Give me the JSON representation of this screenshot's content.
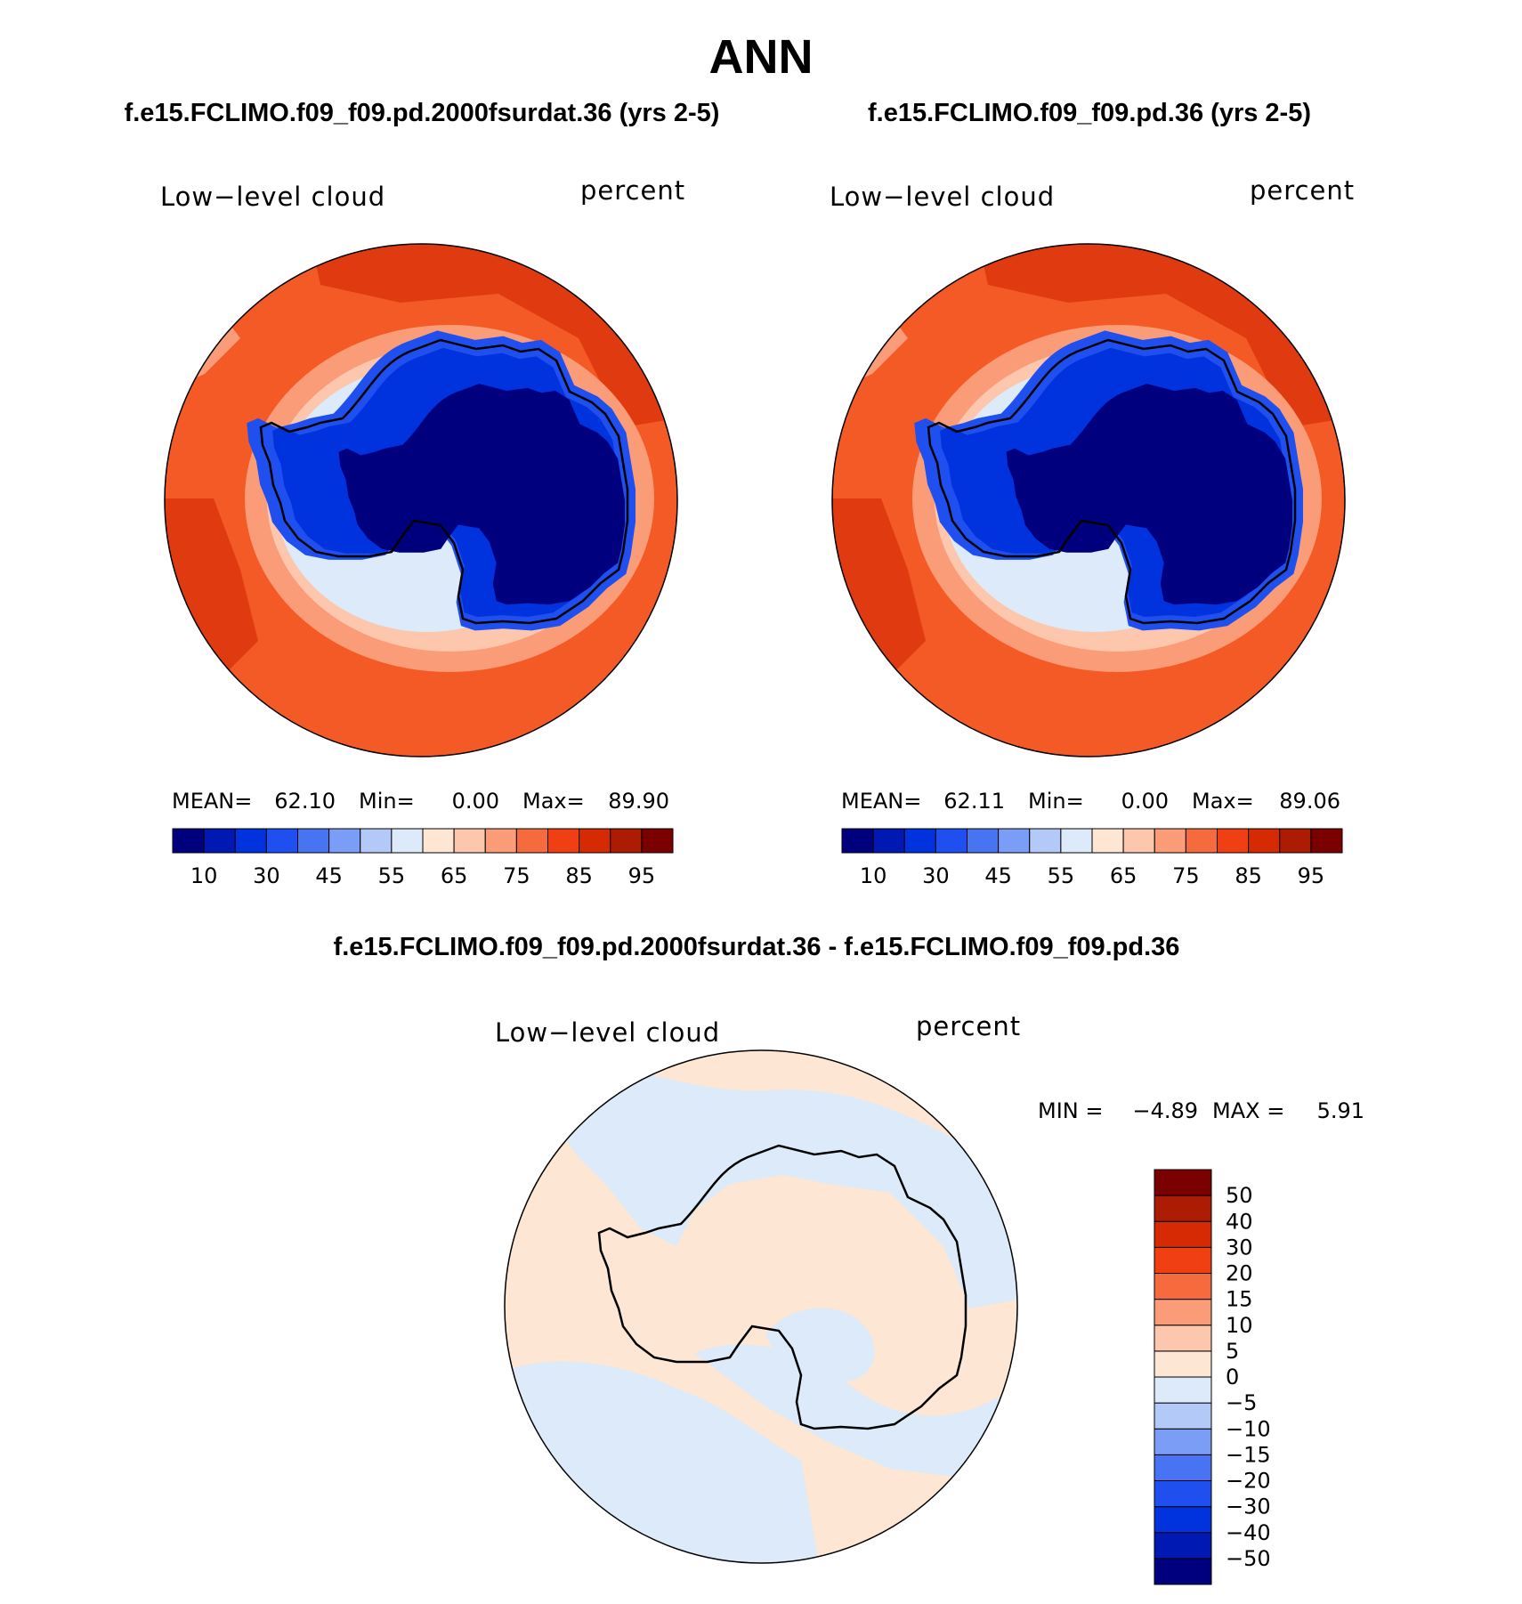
{
  "main_title": "ANN",
  "panels": {
    "left": {
      "case_title": "f.e15.FCLIMO.f09_f09.pd.2000fsurdat.36 (yrs 2-5)",
      "var_label": "Low−level cloud",
      "units": "percent",
      "stats": {
        "mean_label": "MEAN=",
        "mean": "62.10",
        "min_label": "Min=",
        "min": "0.00",
        "max_label": "Max=",
        "max": "89.90"
      }
    },
    "right": {
      "case_title": "f.e15.FCLIMO.f09_f09.pd.36 (yrs 2-5)",
      "var_label": "Low−level cloud",
      "units": "percent",
      "stats": {
        "mean_label": "MEAN=",
        "mean": "62.11",
        "min_label": "Min=",
        "min": "0.00",
        "max_label": "Max=",
        "max": "89.06"
      }
    },
    "diff": {
      "case_title": "f.e15.FCLIMO.f09_f09.pd.2000fsurdat.36 - f.e15.FCLIMO.f09_f09.pd.36",
      "var_label": "Low−level cloud",
      "units": "percent",
      "stats": {
        "min_label": "MIN =",
        "min": "−4.89",
        "max_label": "MAX =",
        "max": "5.91"
      }
    }
  },
  "colorbar_main": {
    "colors": [
      "#00007f",
      "#0019b3",
      "#0033dd",
      "#1f4fef",
      "#4873f2",
      "#7a9ef5",
      "#b3c9f7",
      "#dceaf9",
      "#fde6d3",
      "#fcc7ad",
      "#fa9c78",
      "#f56b3e",
      "#f03f12",
      "#d52a04",
      "#ac1c04",
      "#7b0000"
    ],
    "labels": [
      "10",
      "30",
      "45",
      "55",
      "65",
      "75",
      "85",
      "95"
    ]
  },
  "colorbar_diff": {
    "colors": [
      "#00007f",
      "#0019b3",
      "#0033dd",
      "#1f4fef",
      "#4873f2",
      "#7a9ef5",
      "#b3c9f7",
      "#dceaf9",
      "#fde6d3",
      "#fcc7ad",
      "#fa9c78",
      "#f56b3e",
      "#f03f12",
      "#d52a04",
      "#ac1c04",
      "#7b0000"
    ],
    "labels": [
      "−50",
      "−40",
      "−30",
      "−20",
      "−15",
      "−10",
      "−5",
      "0",
      "5",
      "10",
      "15",
      "20",
      "30",
      "40",
      "50"
    ]
  },
  "map_colors": {
    "ocean_main": "#f35a26",
    "ocean_dark": "#e03a10",
    "ice_edge": "#fbb494",
    "sea_ice_light": "#dcecfa",
    "ice_sheet_blue": "#1f4fef",
    "ice_sheet_deep": "#00007f",
    "diff_positive": "#fde6d3",
    "diff_negative": "#dceaf9"
  }
}
